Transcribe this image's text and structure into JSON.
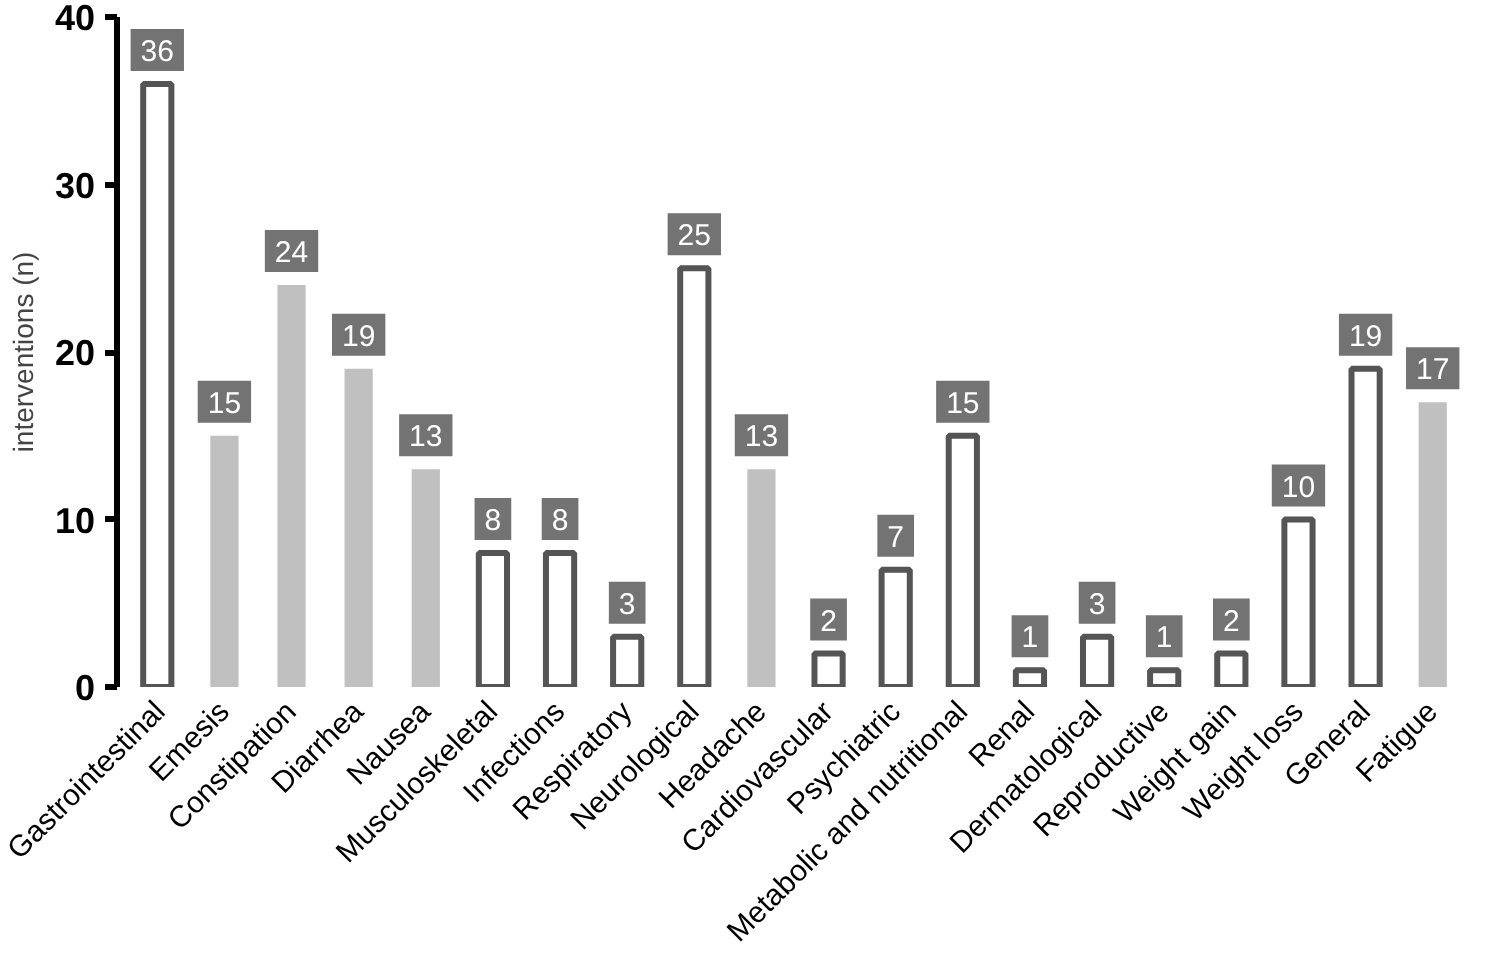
{
  "chart_data": {
    "type": "bar",
    "ylabel": "interventions (n)",
    "categories": [
      "Gastrointestinal",
      "Emesis",
      "Constipation",
      "Diarrhea",
      "Nausea",
      "Musculoskeletal",
      "Infections",
      "Respiratory",
      "Neurological",
      "Headache",
      "Cardiovascular",
      "Psychiatric",
      "Metabolic and nutritional",
      "Renal",
      "Dermatological",
      "Reproductive",
      "Weight gain",
      "Weight loss",
      "General",
      "Fatigue"
    ],
    "values": [
      36,
      15,
      24,
      19,
      13,
      8,
      8,
      3,
      25,
      13,
      2,
      7,
      15,
      1,
      3,
      1,
      2,
      10,
      19,
      17
    ],
    "colors": [
      "#555555",
      "#c0c0c0",
      "#c0c0c0",
      "#c0c0c0",
      "#c0c0c0",
      "#555555",
      "#555555",
      "#555555",
      "#555555",
      "#c0c0c0",
      "#555555",
      "#555555",
      "#555555",
      "#555555",
      "#555555",
      "#555555",
      "#555555",
      "#555555",
      "#555555",
      "#c0c0c0"
    ],
    "ylim": [
      0,
      40
    ],
    "yticks": [
      0,
      10,
      20,
      30,
      40
    ],
    "data_labels": true,
    "grid": false
  }
}
